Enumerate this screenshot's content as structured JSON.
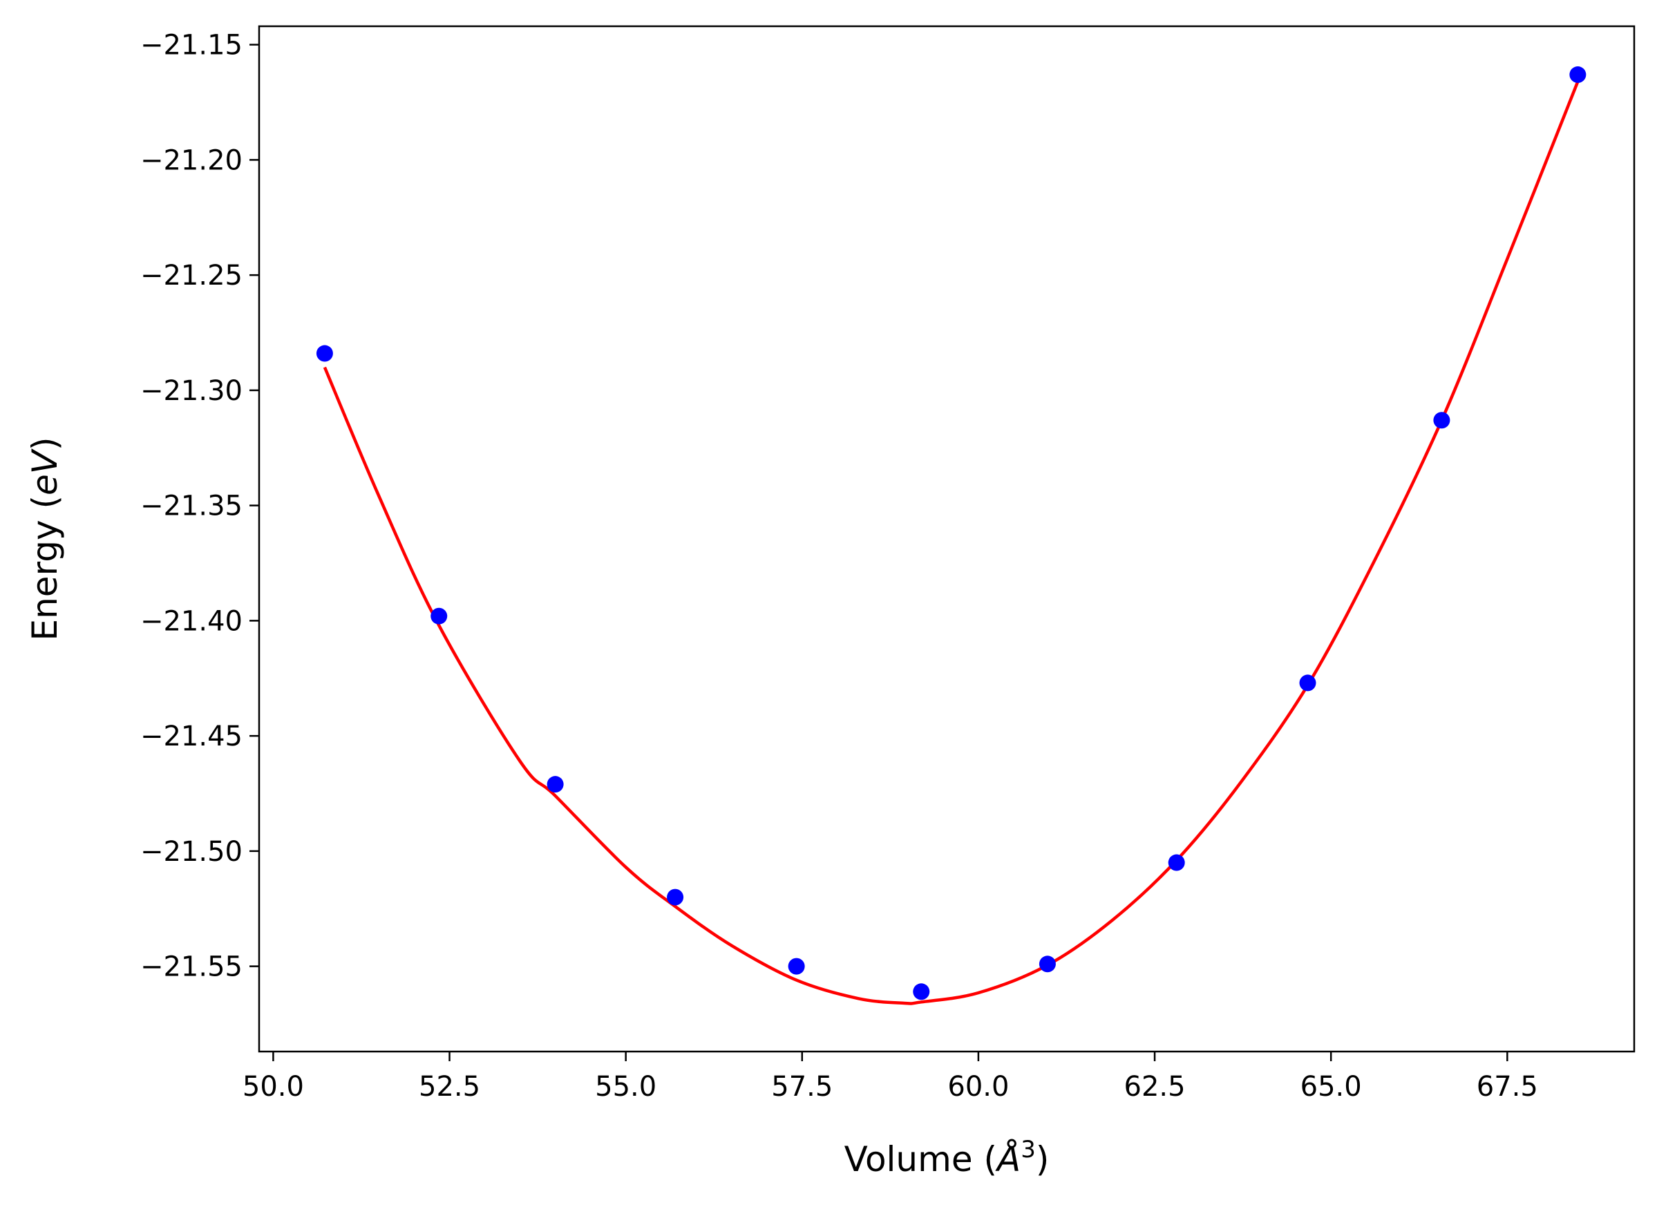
{
  "chart_data": {
    "type": "scatter",
    "xlabel": "Volume (Å³)",
    "xlabel_parts": {
      "pre": "Volume (",
      "symbol": "Å",
      "sup": "3",
      "post": ")"
    },
    "ylabel": "Energy (eV)",
    "ylabel_parts": {
      "pre": "Energy (",
      "var": "eV",
      "post": ")"
    },
    "xlim": [
      49.8,
      69.3
    ],
    "ylim": [
      -21.587,
      -21.142
    ],
    "x_ticks": [
      50.0,
      52.5,
      55.0,
      57.5,
      60.0,
      62.5,
      65.0,
      67.5
    ],
    "x_tick_labels": [
      "50.0",
      "52.5",
      "55.0",
      "57.5",
      "60.0",
      "62.5",
      "65.0",
      "67.5"
    ],
    "y_ticks": [
      -21.15,
      -21.2,
      -21.25,
      -21.3,
      -21.35,
      -21.4,
      -21.45,
      -21.5,
      -21.55
    ],
    "y_tick_labels": [
      "−21.15",
      "−21.20",
      "−21.25",
      "−21.30",
      "−21.35",
      "−21.40",
      "−21.45",
      "−21.50",
      "−21.55"
    ],
    "grid": false,
    "series": [
      {
        "kind": "points",
        "color": "#0000ff",
        "x": [
          50.73,
          52.35,
          54.0,
          55.7,
          57.42,
          59.19,
          60.98,
          62.81,
          64.67,
          66.57,
          68.5
        ],
        "y": [
          -21.284,
          -21.398,
          -21.471,
          -21.52,
          -21.55,
          -21.561,
          -21.549,
          -21.505,
          -21.427,
          -21.313,
          -21.163
        ]
      },
      {
        "kind": "fit",
        "color": "#ff0000",
        "x": [
          50.73,
          51.5,
          52.35,
          53.5,
          54.0,
          55.0,
          55.7,
          56.5,
          57.42,
          58.3,
          58.95,
          59.19,
          60.0,
          60.98,
          61.9,
          62.81,
          63.7,
          64.67,
          65.6,
          66.57,
          67.5,
          68.5
        ],
        "y": [
          -21.29,
          -21.346,
          -21.402,
          -21.461,
          -21.476,
          -21.507,
          -21.524,
          -21.541,
          -21.556,
          -21.564,
          -21.566,
          -21.5655,
          -21.5615,
          -21.5495,
          -21.53,
          -21.504,
          -21.471,
          -21.428,
          -21.375,
          -21.313,
          -21.243,
          -21.166
        ]
      }
    ]
  }
}
